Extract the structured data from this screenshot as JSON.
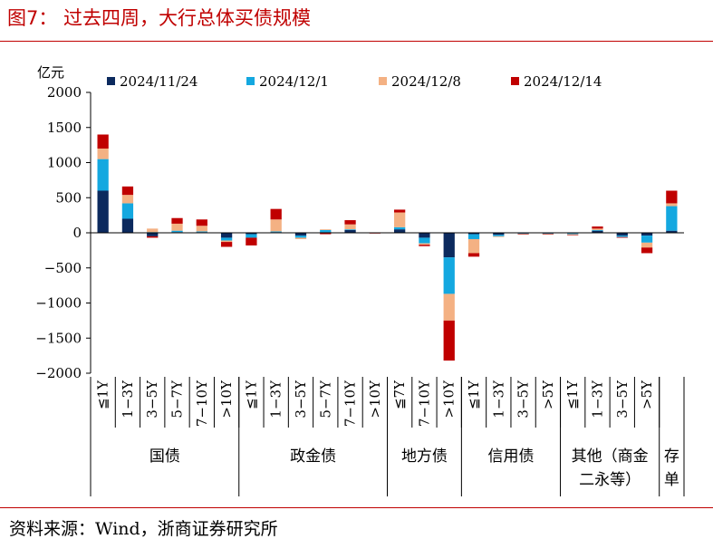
{
  "title": "图7：  过去四周，大行总体买债规模",
  "source": "资料来源：Wind，浙商证券研究所",
  "chart_data": {
    "type": "bar",
    "stacked": true,
    "ylabel": "亿元",
    "ylim": [
      -2000,
      2000
    ],
    "yticks": [
      2000,
      1500,
      1000,
      500,
      0,
      -500,
      -1000,
      -1500,
      -2000
    ],
    "ytick_labels": [
      "2000",
      "1500",
      "1000",
      "500",
      "0",
      "−500",
      "−1000",
      "−1500",
      "−2000"
    ],
    "legend_position": "top",
    "categories": [
      "≦1Y",
      "1−3Y",
      "3−5Y",
      "5−7Y",
      "7−10Y",
      ">10Y",
      "≦1Y",
      "1−3Y",
      "3−5Y",
      "5−7Y",
      "7−10Y",
      ">10Y",
      "≦7Y",
      "7−10Y",
      ">10Y",
      "≦1Y",
      "1−3Y",
      "3−5Y",
      ">5Y",
      "≦1Y",
      "1−3Y",
      "3−5Y",
      ">5Y",
      ""
    ],
    "groups": [
      {
        "label": "国债",
        "start": 0,
        "end": 5
      },
      {
        "label": "政金债",
        "start": 6,
        "end": 11
      },
      {
        "label": "地方债",
        "start": 12,
        "end": 14
      },
      {
        "label": "信用债",
        "start": 15,
        "end": 18
      },
      {
        "label": "其他（商金二永等）",
        "line1": "其他（商金",
        "line2": "二永等）",
        "start": 19,
        "end": 22
      },
      {
        "label": "存单",
        "line1": "存",
        "line2": "单",
        "start": 23,
        "end": 23
      }
    ],
    "series": [
      {
        "name": "2024/11/24",
        "color": "#0c2a5e",
        "values": [
          600,
          200,
          -50,
          10,
          10,
          -70,
          -20,
          10,
          -40,
          10,
          40,
          0,
          50,
          -70,
          -350,
          -20,
          -30,
          -10,
          -10,
          -10,
          30,
          -40,
          -40,
          30
        ]
      },
      {
        "name": "2024/12/1",
        "color": "#14a8e0",
        "values": [
          450,
          220,
          10,
          20,
          10,
          -40,
          -50,
          10,
          -30,
          30,
          10,
          0,
          30,
          -80,
          -520,
          -70,
          -20,
          -5,
          -5,
          -10,
          10,
          -20,
          -100,
          350
        ]
      },
      {
        "name": "2024/12/8",
        "color": "#f4b183",
        "values": [
          150,
          120,
          50,
          100,
          80,
          -20,
          0,
          170,
          -20,
          10,
          70,
          0,
          210,
          -20,
          -380,
          -200,
          -10,
          -5,
          -5,
          -10,
          20,
          0,
          -70,
          40
        ]
      },
      {
        "name": "2024/12/14",
        "color": "#c00000",
        "values": [
          200,
          120,
          -20,
          80,
          90,
          -70,
          -110,
          150,
          0,
          -20,
          60,
          -10,
          40,
          -20,
          -570,
          -50,
          0,
          -5,
          -5,
          -5,
          30,
          -10,
          -80,
          180
        ]
      }
    ]
  }
}
